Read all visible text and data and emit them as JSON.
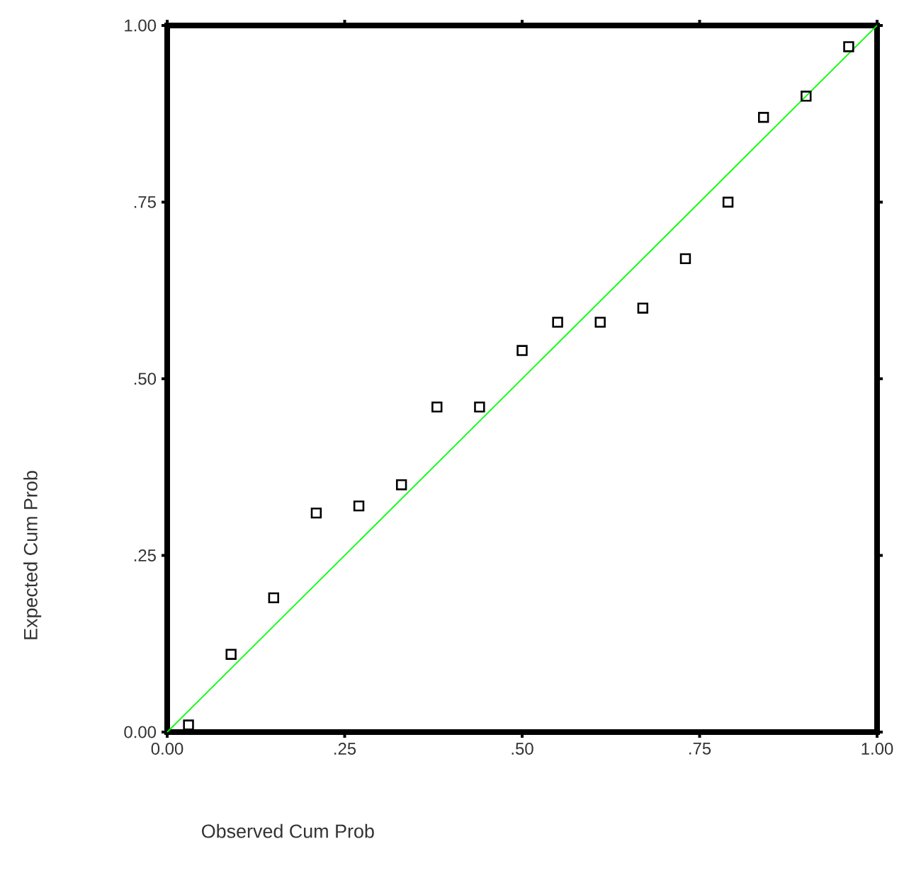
{
  "chart_data": {
    "type": "scatter",
    "xlabel": "Observed Cum Prob",
    "ylabel": "Expected Cum Prob",
    "xlim": [
      0,
      1
    ],
    "ylim": [
      0,
      1
    ],
    "xticks": [
      {
        "value": 0,
        "label": "0.00"
      },
      {
        "value": 0.25,
        "label": ".25"
      },
      {
        "value": 0.5,
        "label": ".50"
      },
      {
        "value": 0.75,
        "label": ".75"
      },
      {
        "value": 1,
        "label": "1.00"
      }
    ],
    "yticks": [
      {
        "value": 0,
        "label": "0.00"
      },
      {
        "value": 0.25,
        "label": ".25"
      },
      {
        "value": 0.5,
        "label": ".50"
      },
      {
        "value": 0.75,
        "label": ".75"
      },
      {
        "value": 1,
        "label": "1.00"
      }
    ],
    "series": [
      {
        "marker": "square",
        "color": "#000000",
        "x": [
          0.03,
          0.09,
          0.15,
          0.21,
          0.27,
          0.33,
          0.38,
          0.44,
          0.5,
          0.55,
          0.61,
          0.67,
          0.73,
          0.79,
          0.84,
          0.9,
          0.96
        ],
        "values": [
          0.01,
          0.11,
          0.19,
          0.31,
          0.32,
          0.35,
          0.46,
          0.46,
          0.54,
          0.58,
          0.58,
          0.6,
          0.67,
          0.75,
          0.87,
          0.9,
          0.97
        ]
      },
      {
        "type": "line",
        "marker": "none",
        "color": "#00ff00",
        "x": [
          0,
          1
        ],
        "values": [
          0,
          1
        ]
      }
    ]
  }
}
